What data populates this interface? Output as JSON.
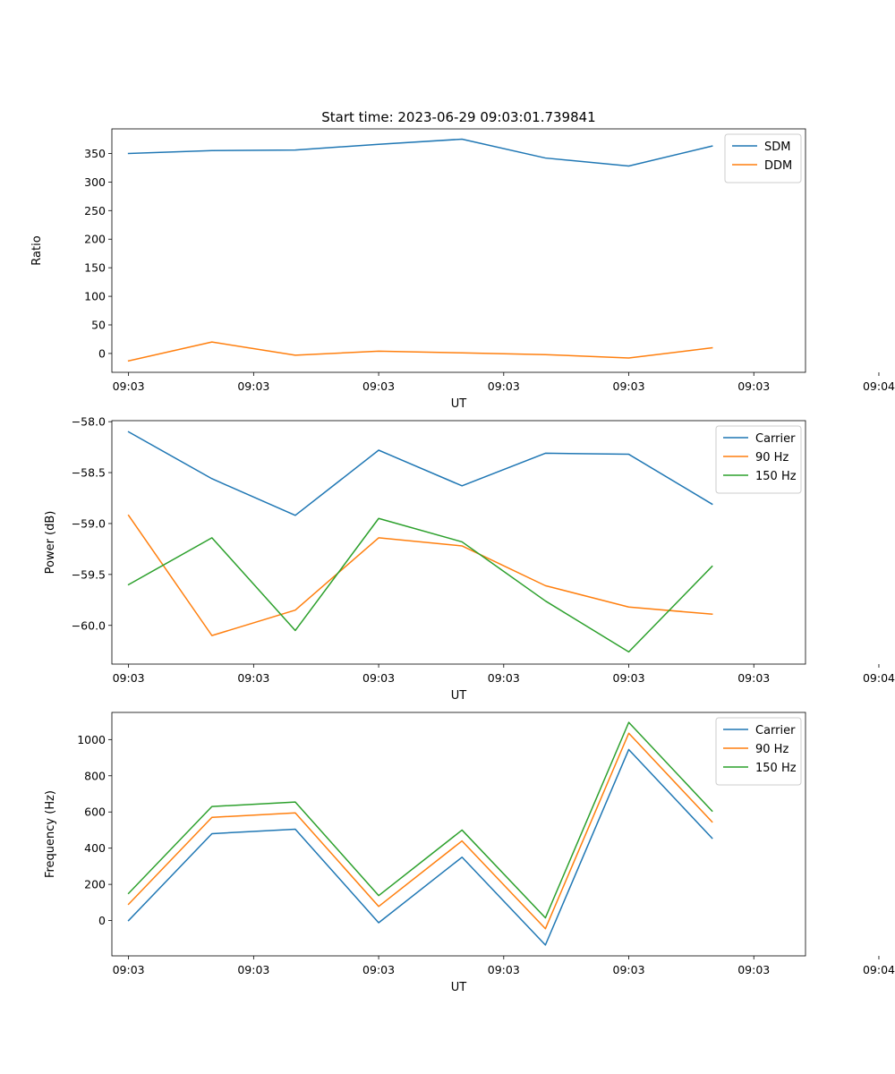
{
  "figure": {
    "title": "Start time: 2023-06-29 09:03:01.739841"
  },
  "chart_data": [
    {
      "type": "line",
      "xlabel": "UT",
      "ylabel": "Ratio",
      "x": [
        1,
        2,
        3,
        4,
        5,
        6,
        7,
        8
      ],
      "xlim": [
        0.8,
        9.12
      ],
      "xticks": [
        {
          "value": 1,
          "label": "09:03"
        },
        {
          "value": 2.5,
          "label": "09:03"
        },
        {
          "value": 4,
          "label": "09:03"
        },
        {
          "value": 5.5,
          "label": "09:03"
        },
        {
          "value": 7,
          "label": "09:03"
        },
        {
          "value": 8.5,
          "label": "09:03"
        },
        {
          "value": 10,
          "label": "09:04"
        }
      ],
      "ylim": [
        -33,
        393
      ],
      "yticks": [
        0,
        50,
        100,
        150,
        200,
        250,
        300,
        350
      ],
      "legend": "top-right",
      "series": [
        {
          "name": "SDM",
          "color": "#1f77b4",
          "values": [
            350,
            355,
            356,
            366,
            375,
            342,
            328,
            363
          ]
        },
        {
          "name": "DDM",
          "color": "#ff7f0e",
          "values": [
            -13,
            20,
            -3,
            4,
            1,
            -2,
            -8,
            10
          ]
        }
      ]
    },
    {
      "type": "line",
      "xlabel": "UT",
      "ylabel": "Power (dB)",
      "x": [
        1,
        2,
        3,
        4,
        5,
        6,
        7,
        8
      ],
      "xlim": [
        0.8,
        9.12
      ],
      "xticks": [
        {
          "value": 1,
          "label": "09:03"
        },
        {
          "value": 2.5,
          "label": "09:03"
        },
        {
          "value": 4,
          "label": "09:03"
        },
        {
          "value": 5.5,
          "label": "09:03"
        },
        {
          "value": 7,
          "label": "09:03"
        },
        {
          "value": 8.5,
          "label": "09:03"
        },
        {
          "value": 10,
          "label": "09:04"
        }
      ],
      "ylim": [
        -60.38,
        -57.99
      ],
      "yticks": [
        -60.0,
        -59.5,
        -59.0,
        -58.5,
        -58.0
      ],
      "ytick_labels": [
        "−60.0",
        "−59.5",
        "−59.0",
        "−58.5",
        "−58.0"
      ],
      "legend": "top-right",
      "series": [
        {
          "name": "Carrier",
          "color": "#1f77b4",
          "values": [
            -58.1,
            -58.56,
            -58.92,
            -58.28,
            -58.63,
            -58.31,
            -58.32,
            -58.81
          ]
        },
        {
          "name": "90 Hz",
          "color": "#ff7f0e",
          "values": [
            -58.92,
            -60.1,
            -59.85,
            -59.14,
            -59.22,
            -59.61,
            -59.82,
            -59.89
          ]
        },
        {
          "name": "150 Hz",
          "color": "#2ca02c",
          "values": [
            -59.6,
            -59.14,
            -60.05,
            -58.95,
            -59.18,
            -59.76,
            -60.26,
            -59.42
          ]
        }
      ]
    },
    {
      "type": "line",
      "xlabel": "UT",
      "ylabel": "Frequency (Hz)",
      "x": [
        1,
        2,
        3,
        4,
        5,
        6,
        7,
        8
      ],
      "xlim": [
        0.8,
        9.12
      ],
      "xticks": [
        {
          "value": 1,
          "label": "09:03"
        },
        {
          "value": 2.5,
          "label": "09:03"
        },
        {
          "value": 4,
          "label": "09:03"
        },
        {
          "value": 5.5,
          "label": "09:03"
        },
        {
          "value": 7,
          "label": "09:03"
        },
        {
          "value": 8.5,
          "label": "09:03"
        },
        {
          "value": 10,
          "label": "09:04"
        }
      ],
      "ylim": [
        -195,
        1150
      ],
      "yticks": [
        0,
        200,
        400,
        600,
        800,
        1000
      ],
      "legend": "top-right",
      "series": [
        {
          "name": "Carrier",
          "color": "#1f77b4",
          "values": [
            0,
            480,
            505,
            -12,
            350,
            -135,
            945,
            455
          ]
        },
        {
          "name": "90 Hz",
          "color": "#ff7f0e",
          "values": [
            90,
            570,
            595,
            78,
            440,
            -45,
            1035,
            545
          ]
        },
        {
          "name": "150 Hz",
          "color": "#2ca02c",
          "values": [
            150,
            630,
            655,
            138,
            500,
            15,
            1095,
            605
          ]
        }
      ]
    }
  ]
}
